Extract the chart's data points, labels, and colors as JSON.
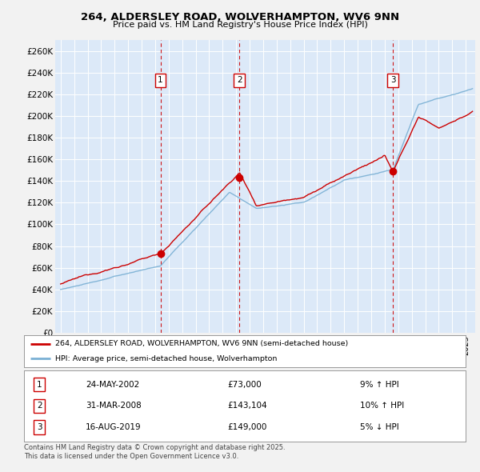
{
  "title_line1": "264, ALDERSLEY ROAD, WOLVERHAMPTON, WV6 9NN",
  "title_line2": "Price paid vs. HM Land Registry's House Price Index (HPI)",
  "ylim": [
    0,
    270000
  ],
  "yticks": [
    0,
    20000,
    40000,
    60000,
    80000,
    100000,
    120000,
    140000,
    160000,
    180000,
    200000,
    220000,
    240000,
    260000
  ],
  "xlim_start": 1994.6,
  "xlim_end": 2025.7,
  "background_color": "#f2f2f2",
  "plot_bg_color": "#dce9f8",
  "grid_color": "#ffffff",
  "red_line_color": "#cc0000",
  "blue_line_color": "#7ab0d4",
  "sale_marker_color": "#cc0000",
  "dashed_line_color": "#cc0000",
  "sale1_price": 73000,
  "sale1_year": 2002.39,
  "sale2_price": 143104,
  "sale2_year": 2008.25,
  "sale3_price": 149000,
  "sale3_year": 2019.62,
  "legend_line1": "264, ALDERSLEY ROAD, WOLVERHAMPTON, WV6 9NN (semi-detached house)",
  "legend_line2": "HPI: Average price, semi-detached house, Wolverhampton",
  "table_row1_num": "1",
  "table_row1_date": "24-MAY-2002",
  "table_row1_price": "£73,000",
  "table_row1_hpi": "9% ↑ HPI",
  "table_row2_num": "2",
  "table_row2_date": "31-MAR-2008",
  "table_row2_price": "£143,104",
  "table_row2_hpi": "10% ↑ HPI",
  "table_row3_num": "3",
  "table_row3_date": "16-AUG-2019",
  "table_row3_price": "£149,000",
  "table_row3_hpi": "5% ↓ HPI",
  "footer_text": "Contains HM Land Registry data © Crown copyright and database right 2025.\nThis data is licensed under the Open Government Licence v3.0."
}
